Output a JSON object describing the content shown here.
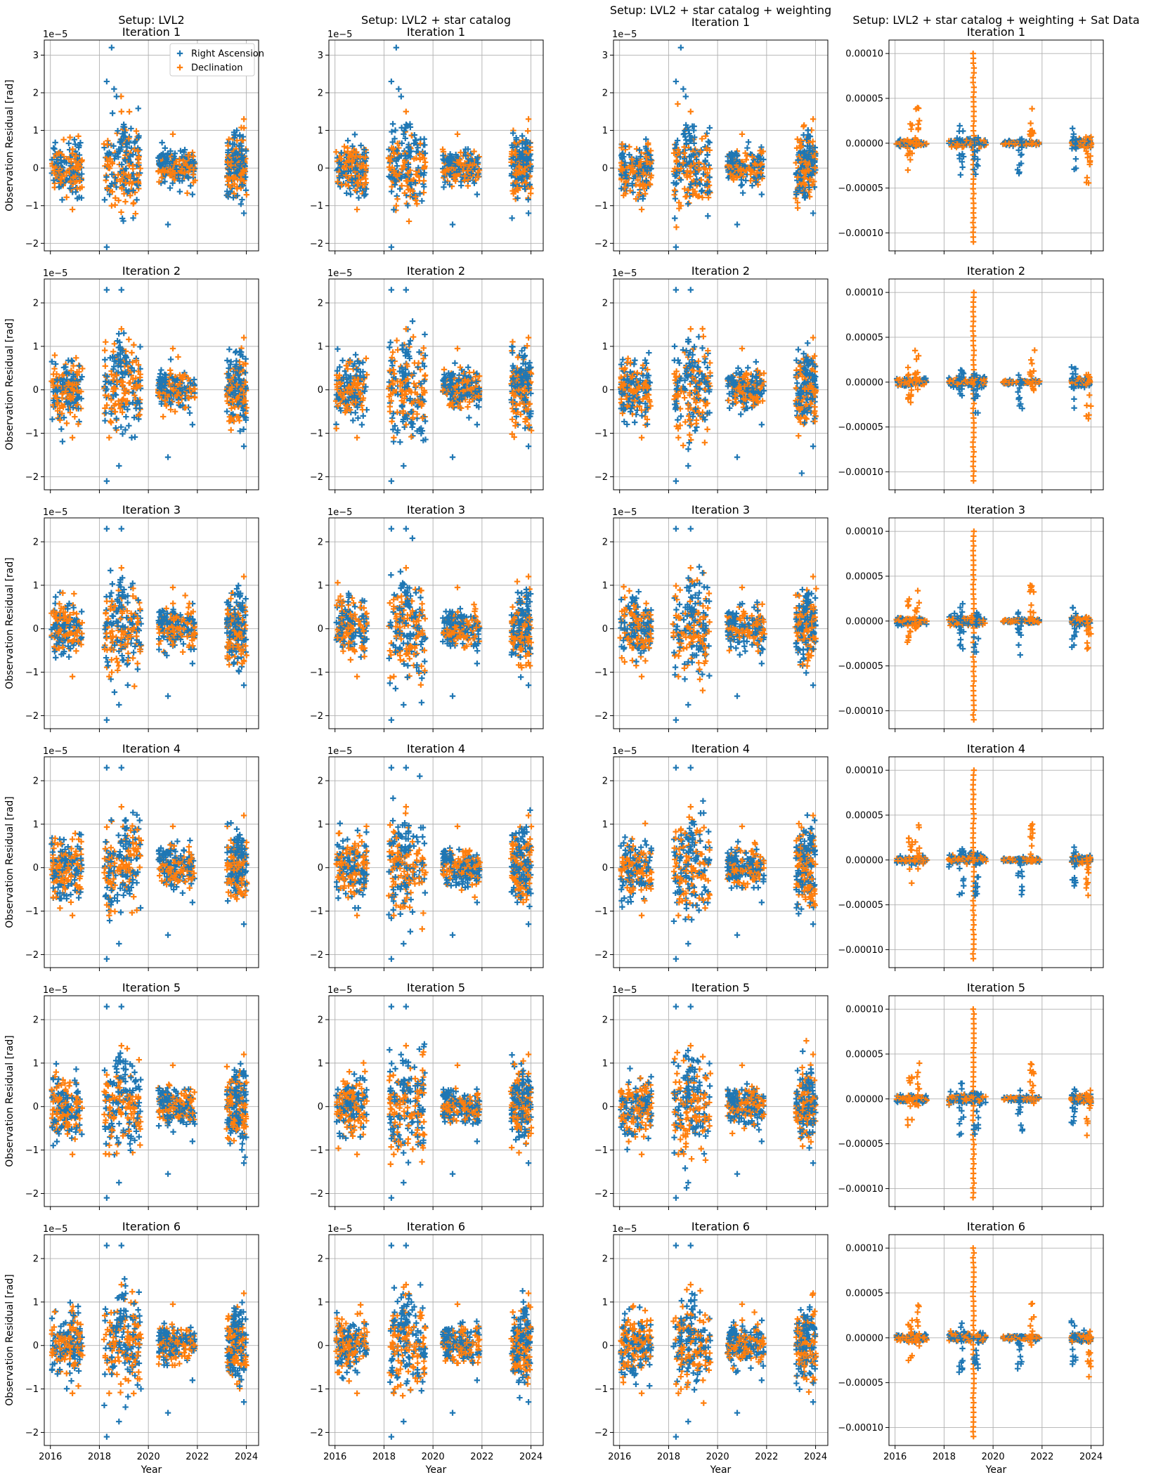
{
  "figure": {
    "ylabel": "Observation Residual [rad]",
    "xlabel": "Year",
    "offset_label": "1e−5",
    "legend": [
      "Right Ascension",
      "Declination"
    ],
    "colors": {
      "ra": "#1f77b4",
      "dec": "#ff7f0e",
      "grid": "#b0b0b0"
    }
  },
  "chart_data": {
    "type": "scatter",
    "marker": "plus",
    "columns": [
      {
        "setup_title": "Setup: LVL2"
      },
      {
        "setup_title": "Setup: LVL2 + star catalog"
      },
      {
        "setup_title": "Setup: LVL2 + star catalog + weighting"
      },
      {
        "setup_title": "Setup: LVL2 + star catalog + weighting + Sat Data"
      }
    ],
    "rows": [
      {
        "iteration": "Iteration 1"
      },
      {
        "iteration": "Iteration 2"
      },
      {
        "iteration": "Iteration 3"
      },
      {
        "iteration": "Iteration 4"
      },
      {
        "iteration": "Iteration 5"
      },
      {
        "iteration": "Iteration 6"
      }
    ],
    "xlim": [
      2015.75,
      2024.5
    ],
    "xticks": [
      2016,
      2018,
      2020,
      2022,
      2024
    ],
    "axes_sets": {
      "iter1_small": {
        "ylim": [
          -2.2e-05,
          3.4e-05
        ],
        "yticks": [
          -2e-05,
          -1e-05,
          0,
          1e-05,
          2e-05,
          3e-05
        ],
        "yticklabels": [
          "−2",
          "−1",
          "0",
          "1",
          "2",
          "3"
        ]
      },
      "small": {
        "ylim": [
          -2.3e-05,
          2.55e-05
        ],
        "yticks": [
          -2e-05,
          -1e-05,
          0,
          1e-05,
          2e-05
        ],
        "yticklabels": [
          "−2",
          "−1",
          "0",
          "1",
          "2"
        ]
      },
      "sat": {
        "ylim": [
          -0.00012,
          0.000115
        ],
        "yticks": [
          -0.0001,
          -5e-05,
          0,
          5e-05,
          0.0001
        ],
        "yticklabels": [
          "−0.00010",
          "−0.00005",
          "0.00000",
          "0.00005",
          "0.00010"
        ]
      }
    },
    "series": [
      {
        "name": "Right Ascension",
        "color": "#1f77b4"
      },
      {
        "name": "Declination",
        "color": "#ff7f0e"
      }
    ],
    "clusters": [
      {
        "x_range": [
          2016.05,
          2017.3
        ],
        "ra_spread": 3.5e-06,
        "dec_spread": 3.2e-06
      },
      {
        "x_range": [
          2018.2,
          2019.7
        ],
        "ra_spread": 5.5e-06,
        "dec_spread": 5e-06
      },
      {
        "x_range": [
          2020.4,
          2021.9
        ],
        "ra_spread": 2.2e-06,
        "dec_spread": 2e-06
      },
      {
        "x_range": [
          2023.2,
          2024.0
        ],
        "ra_spread": 4e-06,
        "dec_spread": 4e-06
      }
    ],
    "notable_points": {
      "iter1": {
        "ra": [
          [
            2018.5,
            3.2e-05
          ],
          [
            2018.3,
            2.3e-05
          ],
          [
            2018.6,
            2.1e-05
          ],
          [
            2018.7,
            1.9e-05
          ],
          [
            2018.3,
            -2.1e-05
          ],
          [
            2020.8,
            -1.5e-05
          ],
          [
            2023.9,
            -1.2e-05
          ],
          [
            2021.8,
            -7e-06
          ]
        ],
        "dec": [
          [
            2018.9,
            1.5e-05
          ],
          [
            2016.9,
            -1.1e-05
          ],
          [
            2021.0,
            9e-06
          ],
          [
            2023.9,
            1.3e-05
          ],
          [
            2018.5,
            -1e-05
          ]
        ]
      },
      "iter_n": {
        "ra": [
          [
            2018.3,
            2.3e-05
          ],
          [
            2018.9,
            2.3e-05
          ],
          [
            2018.3,
            -2.1e-05
          ],
          [
            2018.8,
            -1.75e-05
          ],
          [
            2020.8,
            -1.55e-05
          ],
          [
            2023.9,
            -1.3e-05
          ],
          [
            2021.8,
            -8e-06
          ]
        ],
        "dec": [
          [
            2018.9,
            1.4e-05
          ],
          [
            2016.9,
            -1.1e-05
          ],
          [
            2021.0,
            9.5e-06
          ],
          [
            2023.9,
            1.2e-05
          ],
          [
            2018.4,
            -1.1e-05
          ]
        ]
      },
      "sat": {
        "dec_spike_x": 2019.2,
        "dec_spike_range": [
          -0.00011,
          0.0001
        ],
        "cluster_range": [
          -4e-05,
          4e-05
        ]
      }
    }
  }
}
